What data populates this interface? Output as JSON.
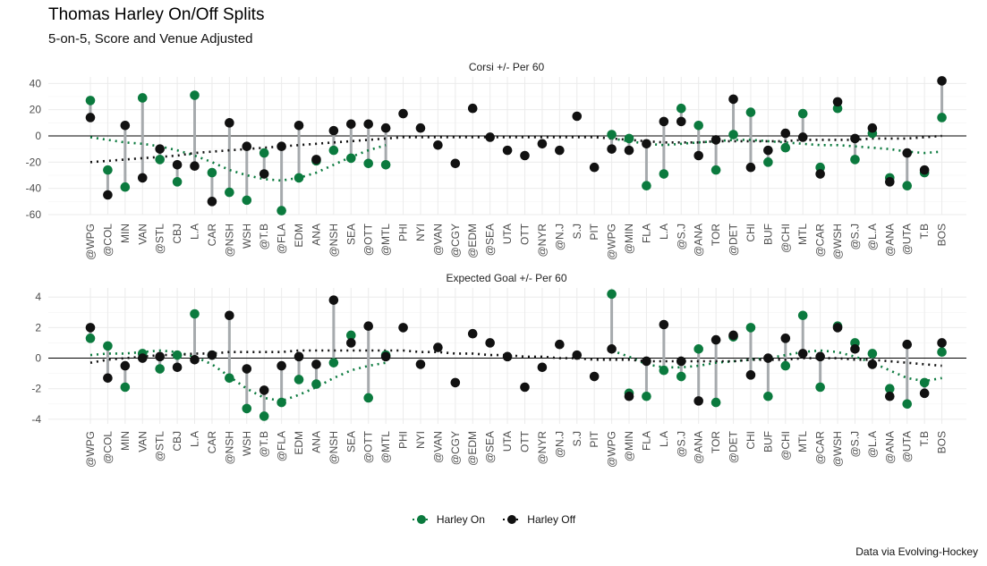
{
  "title": "Thomas Harley On/Off Splits",
  "subtitle": "5-on-5, Score and Venue Adjusted",
  "caption": "Data via Evolving-Hockey",
  "colors": {
    "on": "#0b7a3e",
    "off": "#111111",
    "segment": "#a6aaad",
    "zero": "#000000",
    "grid": "#ebebeb"
  },
  "chart_data": {
    "type": "scatter",
    "legend": [
      {
        "name": "Harley On",
        "color": "#0b7a3e"
      },
      {
        "name": "Harley Off",
        "color": "#111111"
      }
    ],
    "legend_position": "bottom",
    "categories": [
      "@WPG",
      "@COL",
      "MIN",
      "VAN",
      "@STL",
      "CBJ",
      "L.A",
      "CAR",
      "@NSH",
      "WSH",
      "@T.B",
      "@FLA",
      "EDM",
      "ANA",
      "@NSH",
      "SEA",
      "@OTT",
      "@MTL",
      "PHI",
      "NYI",
      "@VAN",
      "@CGY",
      "@EDM",
      "@SEA",
      "UTA",
      "OTT",
      "@NYR",
      "@N.J",
      "S.J",
      "PIT",
      "@WPG",
      "@MIN",
      "FLA",
      "L.A",
      "@S.J",
      "@ANA",
      "TOR",
      "@DET",
      "CHI",
      "BUF",
      "@CHI",
      "MTL",
      "@CAR",
      "@WSH",
      "@S.J",
      "@L.A",
      "@ANA",
      "@UTA",
      "T.B",
      "BOS"
    ],
    "panels": [
      {
        "title": "Corsi +/- Per 60",
        "ylim": [
          -60,
          45
        ],
        "yticks": [
          -60,
          -40,
          -20,
          0,
          20,
          40
        ],
        "on": [
          27,
          -26,
          -39,
          29,
          -18,
          -35,
          31,
          -28,
          -43,
          -49,
          -13,
          -57,
          -32,
          -19,
          -11,
          -17,
          -21,
          -22,
          null,
          null,
          null,
          null,
          null,
          null,
          null,
          null,
          null,
          null,
          null,
          null,
          1,
          -2,
          -38,
          -29,
          21,
          8,
          -26,
          1,
          18,
          -20,
          -9,
          17,
          -24,
          21,
          -18,
          2,
          -32,
          -38,
          -28,
          14
        ],
        "off": [
          14,
          -45,
          8,
          -32,
          -10,
          -22,
          -23,
          -50,
          10,
          -8,
          -29,
          -8,
          8,
          -18,
          4,
          9,
          9,
          6,
          17,
          6,
          -7,
          -21,
          21,
          -1,
          -11,
          -15,
          -6,
          -11,
          15,
          -24,
          -10,
          -11,
          -6,
          11,
          11,
          -15,
          -3,
          28,
          -24,
          -11,
          2,
          -1,
          -29,
          26,
          -2,
          6,
          -35,
          -13,
          -26,
          42
        ],
        "trend_on": [
          -1,
          -3,
          -5,
          -6,
          -8,
          -11,
          -15,
          -20,
          -26,
          -30,
          -33,
          -34,
          -32,
          -28,
          -22,
          -16,
          -11,
          -7,
          null,
          null,
          null,
          null,
          null,
          null,
          null,
          null,
          null,
          null,
          null,
          null,
          -2,
          -4,
          -6,
          -7,
          -6,
          -5,
          -4,
          -3,
          -3,
          -4,
          -5,
          -6,
          -7,
          -7,
          -8,
          -9,
          -10,
          -12,
          -13,
          -12
        ],
        "trend_off": [
          -20,
          -19,
          -18,
          -17,
          -16,
          -15,
          -13,
          -12,
          -11,
          -10,
          -9,
          -8,
          -7,
          -6,
          -5,
          -4,
          -3,
          -2,
          -1,
          -1,
          -1,
          -1,
          -1,
          -1,
          -1,
          -1,
          -1,
          -1,
          -1,
          -1,
          -2,
          -3,
          -4,
          -5,
          -5,
          -5,
          -4,
          -4,
          -4,
          -4,
          -4,
          -3,
          -3,
          -3,
          -3,
          -2,
          -2,
          -2,
          -1,
          0
        ]
      },
      {
        "title": "Expected Goal +/- Per 60",
        "ylim": [
          -4.3,
          4.6
        ],
        "yticks": [
          -4,
          -2,
          0,
          2,
          4
        ],
        "on": [
          1.3,
          0.8,
          -1.9,
          0.3,
          -0.7,
          0.2,
          2.9,
          0.2,
          -1.3,
          -3.3,
          -3.8,
          -2.9,
          -1.4,
          -1.7,
          -0.3,
          1.5,
          -2.6,
          0.2,
          null,
          null,
          null,
          null,
          null,
          null,
          null,
          null,
          null,
          null,
          null,
          null,
          4.2,
          -2.3,
          -2.5,
          -0.8,
          -1.2,
          0.6,
          -2.9,
          1.4,
          2.0,
          -2.5,
          -0.5,
          2.8,
          -1.9,
          2.1,
          1.0,
          0.3,
          -2.0,
          -3.0,
          -1.6,
          0.4
        ],
        "off": [
          2.0,
          -1.3,
          -0.5,
          0.0,
          0.1,
          -0.6,
          -0.1,
          0.2,
          2.8,
          -0.7,
          -2.1,
          -0.5,
          0.1,
          -0.4,
          3.8,
          1.0,
          2.1,
          0.1,
          2.0,
          -0.4,
          0.7,
          -1.6,
          1.6,
          1.0,
          0.1,
          -1.9,
          -0.6,
          0.9,
          0.2,
          -1.2,
          0.6,
          -2.5,
          -0.2,
          2.2,
          -0.2,
          -2.8,
          1.2,
          1.5,
          -1.1,
          0.0,
          1.3,
          0.3,
          0.1,
          2.0,
          0.6,
          -0.4,
          -2.5,
          0.9,
          -2.3,
          1.0
        ],
        "trend_on": [
          0.2,
          0.3,
          0.3,
          0.4,
          0.5,
          0.4,
          0.1,
          -0.4,
          -1.2,
          -2.0,
          -2.6,
          -2.8,
          -2.4,
          -1.9,
          -1.3,
          -0.8,
          -0.5,
          -0.3,
          null,
          null,
          null,
          null,
          null,
          null,
          null,
          null,
          null,
          null,
          null,
          null,
          0.5,
          0.1,
          -0.4,
          -0.6,
          -0.6,
          -0.5,
          -0.3,
          -0.2,
          -0.1,
          0.0,
          0.2,
          0.4,
          0.5,
          0.4,
          0.1,
          -0.3,
          -0.8,
          -1.3,
          -1.5,
          -1.3
        ],
        "trend_off": [
          -0.3,
          -0.1,
          0.0,
          0.1,
          0.2,
          0.2,
          0.3,
          0.3,
          0.4,
          0.4,
          0.4,
          0.4,
          0.5,
          0.5,
          0.5,
          0.5,
          0.5,
          0.5,
          0.5,
          0.4,
          0.4,
          0.3,
          0.3,
          0.2,
          0.2,
          0.1,
          0.1,
          0.0,
          0.0,
          -0.1,
          -0.1,
          -0.1,
          -0.2,
          -0.2,
          -0.2,
          -0.2,
          -0.2,
          -0.2,
          -0.1,
          -0.1,
          -0.1,
          0.0,
          0.0,
          0.0,
          -0.1,
          -0.1,
          -0.2,
          -0.3,
          -0.4,
          -0.5
        ]
      }
    ]
  }
}
